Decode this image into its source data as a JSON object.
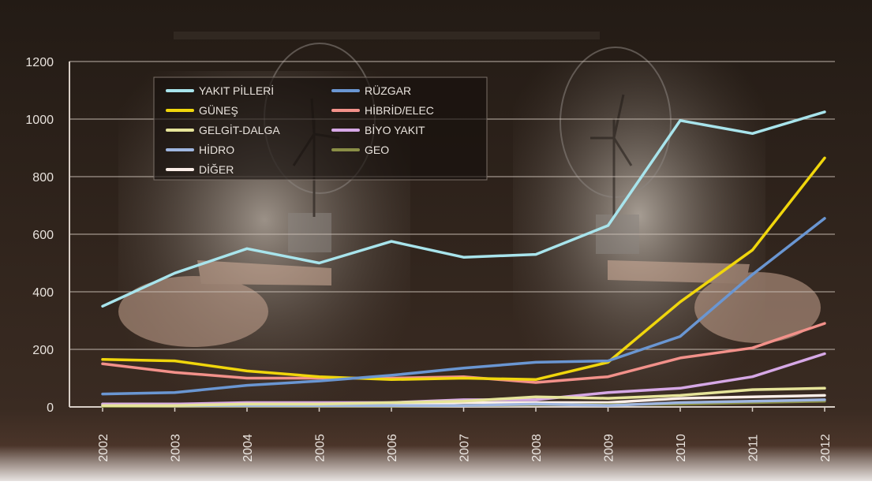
{
  "chart_data": {
    "type": "line",
    "title": "",
    "xlabel": "",
    "ylabel": "",
    "x": [
      "2002",
      "2003",
      "2004",
      "2005",
      "2006",
      "2007",
      "2008",
      "2009",
      "2010",
      "2011",
      "2012"
    ],
    "ylim": [
      0,
      1200
    ],
    "yticks": [
      "0",
      "200",
      "400",
      "600",
      "800",
      "1000",
      "1200"
    ],
    "grid": true,
    "legend_position": "top-left",
    "series": [
      {
        "name": "YAKIT PİLLERİ",
        "color": "#a8e4ec",
        "values": [
          350,
          465,
          550,
          500,
          575,
          520,
          530,
          630,
          995,
          950,
          1025
        ]
      },
      {
        "name": "RÜZGAR",
        "color": "#6a96d2",
        "values": [
          45,
          50,
          75,
          90,
          110,
          135,
          155,
          160,
          245,
          460,
          655
        ]
      },
      {
        "name": "GÜNEŞ",
        "color": "#f0d60c",
        "values": [
          165,
          160,
          125,
          105,
          95,
          100,
          95,
          155,
          365,
          545,
          865
        ]
      },
      {
        "name": "HİBRİD/ELEC",
        "color": "#f2918a",
        "values": [
          150,
          120,
          100,
          100,
          100,
          105,
          85,
          105,
          170,
          205,
          290
        ]
      },
      {
        "name": "GELGİT-DALGA",
        "color": "#e6e49a",
        "values": [
          5,
          5,
          10,
          10,
          15,
          20,
          35,
          30,
          40,
          60,
          65
        ]
      },
      {
        "name": "BİYO YAKIT",
        "color": "#d6a8e6",
        "values": [
          10,
          10,
          15,
          15,
          15,
          25,
          25,
          50,
          65,
          105,
          185
        ]
      },
      {
        "name": "HİDRO",
        "color": "#9fb6e0",
        "values": [
          5,
          5,
          5,
          5,
          5,
          5,
          10,
          5,
          15,
          20,
          25
        ]
      },
      {
        "name": "GEO",
        "color": "#8a8e46",
        "values": [
          2,
          3,
          3,
          3,
          3,
          5,
          8,
          8,
          10,
          15,
          20
        ]
      },
      {
        "name": "DİĞER",
        "color": "#fbeee8",
        "values": [
          10,
          10,
          10,
          10,
          10,
          15,
          15,
          15,
          30,
          35,
          40
        ]
      }
    ]
  }
}
